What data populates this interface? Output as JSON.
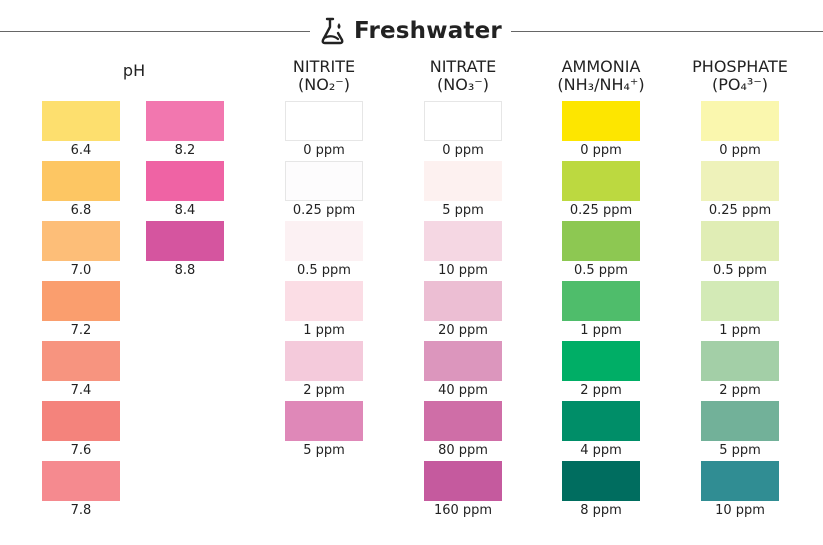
{
  "brand": {
    "name": "Freshwater",
    "icon": "test-tube-drop-icon"
  },
  "columns": [
    {
      "key": "ph",
      "title": "pH",
      "subtitle": "",
      "swatches": [
        {
          "label": "6.4",
          "color": "#FDDF6E"
        },
        {
          "label": "6.8",
          "color": "#FDC663"
        },
        {
          "label": "7.0",
          "color": "#FDBE78"
        },
        {
          "label": "7.2",
          "color": "#FA9E6E"
        },
        {
          "label": "7.4",
          "color": "#F7947F"
        },
        {
          "label": "7.6",
          "color": "#F4837C"
        },
        {
          "label": "7.8",
          "color": "#F58A8F"
        }
      ]
    },
    {
      "key": "ph2",
      "title": "",
      "subtitle": "",
      "swatches": [
        {
          "label": "8.2",
          "color": "#F277AF"
        },
        {
          "label": "8.4",
          "color": "#EF63A4"
        },
        {
          "label": "8.8",
          "color": "#D5559F"
        }
      ]
    },
    {
      "key": "nitrite",
      "title": "NITRITE",
      "subtitle": "(NO₂⁻)",
      "swatches": [
        {
          "label": "0 ppm",
          "color": "#FFFFFF"
        },
        {
          "label": "0.25 ppm",
          "color": "#FDFCFD"
        },
        {
          "label": "0.5 ppm",
          "color": "#FCF1F3"
        },
        {
          "label": "1 ppm",
          "color": "#FBDDE5"
        },
        {
          "label": "2 ppm",
          "color": "#F4CADB"
        },
        {
          "label": "5 ppm",
          "color": "#DF88B8"
        }
      ]
    },
    {
      "key": "nitrate",
      "title": "NITRATE",
      "subtitle": "(NO₃⁻)",
      "swatches": [
        {
          "label": "0 ppm",
          "color": "#FFFFFF"
        },
        {
          "label": "5 ppm",
          "color": "#FDF1F0"
        },
        {
          "label": "10 ppm",
          "color": "#F5D7E3"
        },
        {
          "label": "20 ppm",
          "color": "#ECBED3"
        },
        {
          "label": "40 ppm",
          "color": "#DC96BD"
        },
        {
          "label": "80 ppm",
          "color": "#CF6EA7"
        },
        {
          "label": "160 ppm",
          "color": "#C55A9E"
        }
      ]
    },
    {
      "key": "ammonia",
      "title": "AMMONIA",
      "subtitle": "(NH₃/NH₄⁺)",
      "swatches": [
        {
          "label": "0 ppm",
          "color": "#FDE600"
        },
        {
          "label": "0.25 ppm",
          "color": "#BCD940"
        },
        {
          "label": "0.5 ppm",
          "color": "#8DC852"
        },
        {
          "label": "1 ppm",
          "color": "#4FBD6B"
        },
        {
          "label": "2 ppm",
          "color": "#00AE66"
        },
        {
          "label": "4 ppm",
          "color": "#008E68"
        },
        {
          "label": "8 ppm",
          "color": "#006D5F"
        }
      ]
    },
    {
      "key": "phosphate",
      "title": "PHOSPHATE",
      "subtitle": "(PO₄³⁻)",
      "swatches": [
        {
          "label": "0 ppm",
          "color": "#FAF7AE"
        },
        {
          "label": "0.25 ppm",
          "color": "#EEF2BA"
        },
        {
          "label": "0.5 ppm",
          "color": "#E0EDB5"
        },
        {
          "label": "1 ppm",
          "color": "#D3EAB6"
        },
        {
          "label": "2 ppm",
          "color": "#A3CFA7"
        },
        {
          "label": "5 ppm",
          "color": "#72B199"
        },
        {
          "label": "10 ppm",
          "color": "#308D93"
        }
      ]
    }
  ]
}
